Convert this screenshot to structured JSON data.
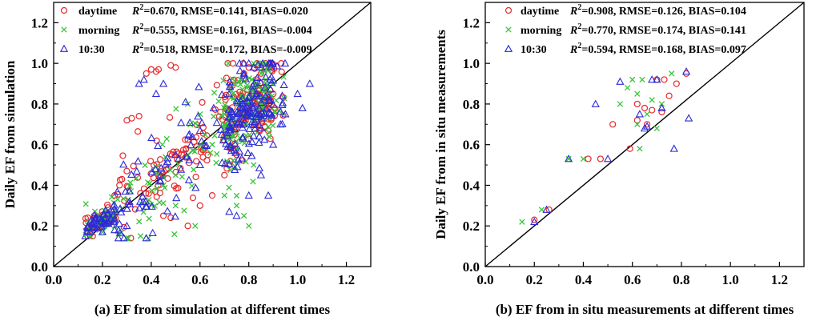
{
  "chart_data": [
    {
      "type": "scatter",
      "panel": "a",
      "xlabel": "(a) EF from simulation at different times",
      "ylabel": "Daily EF from simulation",
      "xlim": [
        0.0,
        1.3
      ],
      "ylim": [
        0.0,
        1.3
      ],
      "xticks": [
        "0.0",
        "0.2",
        "0.4",
        "0.6",
        "0.8",
        "1.0",
        "1.2"
      ],
      "yticks": [
        "0.0",
        "0.2",
        "0.4",
        "0.6",
        "0.8",
        "1.0",
        "1.2"
      ],
      "one_to_one_line": true,
      "legend_position": "top-left",
      "series": [
        {
          "name": "daytime",
          "marker": "circle",
          "color": "#e8282b",
          "stats": "=0.670, RMSE=0.141, BIAS=0.020",
          "seed": 11,
          "n": 260,
          "slope": 1.0,
          "bias": 0.02,
          "noise": 0.11,
          "points": [
            [
              0.14,
              0.15
            ],
            [
              0.15,
              0.16
            ],
            [
              0.16,
              0.15
            ],
            [
              0.14,
              0.24
            ],
            [
              0.17,
              0.24
            ],
            [
              0.2,
              0.2
            ],
            [
              0.25,
              0.35
            ],
            [
              0.27,
              0.4
            ],
            [
              0.28,
              0.43
            ],
            [
              0.3,
              0.47
            ],
            [
              0.3,
              0.72
            ],
            [
              0.32,
              0.73
            ],
            [
              0.35,
              0.74
            ],
            [
              0.38,
              0.95
            ],
            [
              0.4,
              0.97
            ],
            [
              0.42,
              0.96
            ],
            [
              0.43,
              0.97
            ],
            [
              0.48,
              0.99
            ],
            [
              0.5,
              0.98
            ],
            [
              0.45,
              0.25
            ],
            [
              0.48,
              0.24
            ],
            [
              0.55,
              0.2
            ],
            [
              0.6,
              0.3
            ],
            [
              0.65,
              0.35
            ],
            [
              0.7,
              0.45
            ],
            [
              0.72,
              0.5
            ],
            [
              0.75,
              0.55
            ],
            [
              0.8,
              0.75
            ],
            [
              0.82,
              0.82
            ],
            [
              0.84,
              0.85
            ],
            [
              0.85,
              0.8
            ],
            [
              0.86,
              0.78
            ],
            [
              0.87,
              0.83
            ],
            [
              0.9,
              0.85
            ],
            [
              0.83,
              0.8
            ],
            [
              0.84,
              0.82
            ],
            [
              0.88,
              0.8
            ],
            [
              0.86,
              0.88
            ],
            [
              0.83,
              0.92
            ],
            [
              0.78,
              0.95
            ],
            [
              0.8,
              0.98
            ],
            [
              0.85,
              0.95
            ]
          ]
        },
        {
          "name": "morning",
          "marker": "cross",
          "color": "#39c339",
          "stats": "=0.555, RMSE=0.161, BIAS=-0.004",
          "seed": 23,
          "n": 240,
          "slope": 0.98,
          "bias": -0.004,
          "noise": 0.13,
          "points": [
            [
              0.15,
              0.15
            ],
            [
              0.2,
              0.17
            ],
            [
              0.25,
              0.2
            ],
            [
              0.45,
              0.4
            ],
            [
              0.5,
              0.45
            ],
            [
              0.55,
              0.55
            ],
            [
              0.6,
              0.6
            ],
            [
              0.7,
              0.35
            ],
            [
              0.75,
              0.3
            ],
            [
              0.78,
              0.25
            ],
            [
              0.8,
              0.2
            ],
            [
              0.55,
              0.8
            ],
            [
              0.6,
              0.75
            ],
            [
              0.7,
              0.7
            ],
            [
              0.85,
              0.95
            ],
            [
              0.88,
              0.97
            ],
            [
              0.9,
              0.9
            ],
            [
              0.65,
              0.6
            ],
            [
              0.5,
              0.3
            ],
            [
              0.58,
              0.2
            ],
            [
              0.82,
              0.5
            ]
          ]
        },
        {
          "name": "10:30",
          "marker": "triangle",
          "color": "#2a2ad8",
          "stats": "=0.518, RMSE=0.172, BIAS=-0.009",
          "seed": 37,
          "n": 260,
          "slope": 1.0,
          "bias": -0.009,
          "noise": 0.14,
          "points": [
            [
              0.13,
              0.15
            ],
            [
              0.15,
              0.17
            ],
            [
              0.2,
              0.17
            ],
            [
              0.22,
              0.26
            ],
            [
              0.25,
              0.18
            ],
            [
              0.3,
              0.2
            ],
            [
              0.35,
              0.9
            ],
            [
              0.37,
              0.92
            ],
            [
              0.42,
              0.85
            ],
            [
              0.45,
              0.9
            ],
            [
              0.5,
              0.55
            ],
            [
              0.6,
              0.5
            ],
            [
              0.72,
              0.27
            ],
            [
              0.8,
              0.35
            ],
            [
              0.85,
              0.45
            ],
            [
              0.9,
              0.6
            ],
            [
              0.93,
              0.7
            ],
            [
              0.95,
              0.75
            ],
            [
              1.0,
              0.85
            ],
            [
              1.02,
              0.78
            ],
            [
              1.05,
              0.9
            ],
            [
              0.78,
              0.95
            ],
            [
              0.8,
              1.0
            ],
            [
              0.82,
              0.98
            ],
            [
              0.75,
              0.25
            ],
            [
              0.88,
              0.35
            ]
          ]
        }
      ]
    },
    {
      "type": "scatter",
      "panel": "b",
      "xlabel": "(b) EF from in situ measurements at different times",
      "ylabel": "Daily EF from in situ measurements",
      "xlim": [
        0.0,
        1.3
      ],
      "ylim": [
        0.0,
        1.3
      ],
      "xticks": [
        "0.0",
        "0.2",
        "0.4",
        "0.6",
        "0.8",
        "1.0",
        "1.2"
      ],
      "yticks": [
        "0.0",
        "0.2",
        "0.4",
        "0.6",
        "0.8",
        "1.0",
        "1.2"
      ],
      "one_to_one_line": true,
      "legend_position": "top-left",
      "series": [
        {
          "name": "daytime",
          "marker": "circle",
          "color": "#e8282b",
          "stats": "=0.908, RMSE=0.126, BIAS=0.104",
          "points": [
            [
              0.2,
              0.23
            ],
            [
              0.26,
              0.28
            ],
            [
              0.42,
              0.53
            ],
            [
              0.47,
              0.53
            ],
            [
              0.52,
              0.7
            ],
            [
              0.59,
              0.58
            ],
            [
              0.62,
              0.72
            ],
            [
              0.62,
              0.8
            ],
            [
              0.65,
              0.78
            ],
            [
              0.66,
              0.7
            ],
            [
              0.68,
              0.77
            ],
            [
              0.7,
              0.92
            ],
            [
              0.72,
              0.76
            ],
            [
              0.73,
              0.92
            ],
            [
              0.75,
              0.84
            ],
            [
              0.78,
              0.9
            ],
            [
              0.82,
              0.95
            ]
          ]
        },
        {
          "name": "morning",
          "marker": "cross",
          "color": "#39c339",
          "stats": "=0.770, RMSE=0.174, BIAS=0.141",
          "points": [
            [
              0.15,
              0.22
            ],
            [
              0.23,
              0.28
            ],
            [
              0.34,
              0.53
            ],
            [
              0.4,
              0.53
            ],
            [
              0.55,
              0.8
            ],
            [
              0.58,
              0.88
            ],
            [
              0.6,
              0.92
            ],
            [
              0.62,
              0.7
            ],
            [
              0.62,
              0.85
            ],
            [
              0.63,
              0.58
            ],
            [
              0.64,
              0.92
            ],
            [
              0.66,
              0.75
            ],
            [
              0.68,
              0.82
            ],
            [
              0.7,
              0.68
            ],
            [
              0.72,
              0.8
            ],
            [
              0.76,
              0.95
            ]
          ]
        },
        {
          "name": "10:30",
          "marker": "triangle",
          "color": "#2a2ad8",
          "stats": "=0.594, RMSE=0.168, BIAS=0.097",
          "points": [
            [
              0.2,
              0.22
            ],
            [
              0.25,
              0.28
            ],
            [
              0.34,
              0.53
            ],
            [
              0.45,
              0.8
            ],
            [
              0.5,
              0.53
            ],
            [
              0.55,
              0.91
            ],
            [
              0.63,
              0.75
            ],
            [
              0.65,
              0.68
            ],
            [
              0.66,
              0.69
            ],
            [
              0.68,
              0.92
            ],
            [
              0.7,
              0.92
            ],
            [
              0.72,
              0.78
            ],
            [
              0.77,
              0.58
            ],
            [
              0.82,
              0.96
            ],
            [
              0.83,
              0.73
            ]
          ]
        }
      ]
    }
  ]
}
